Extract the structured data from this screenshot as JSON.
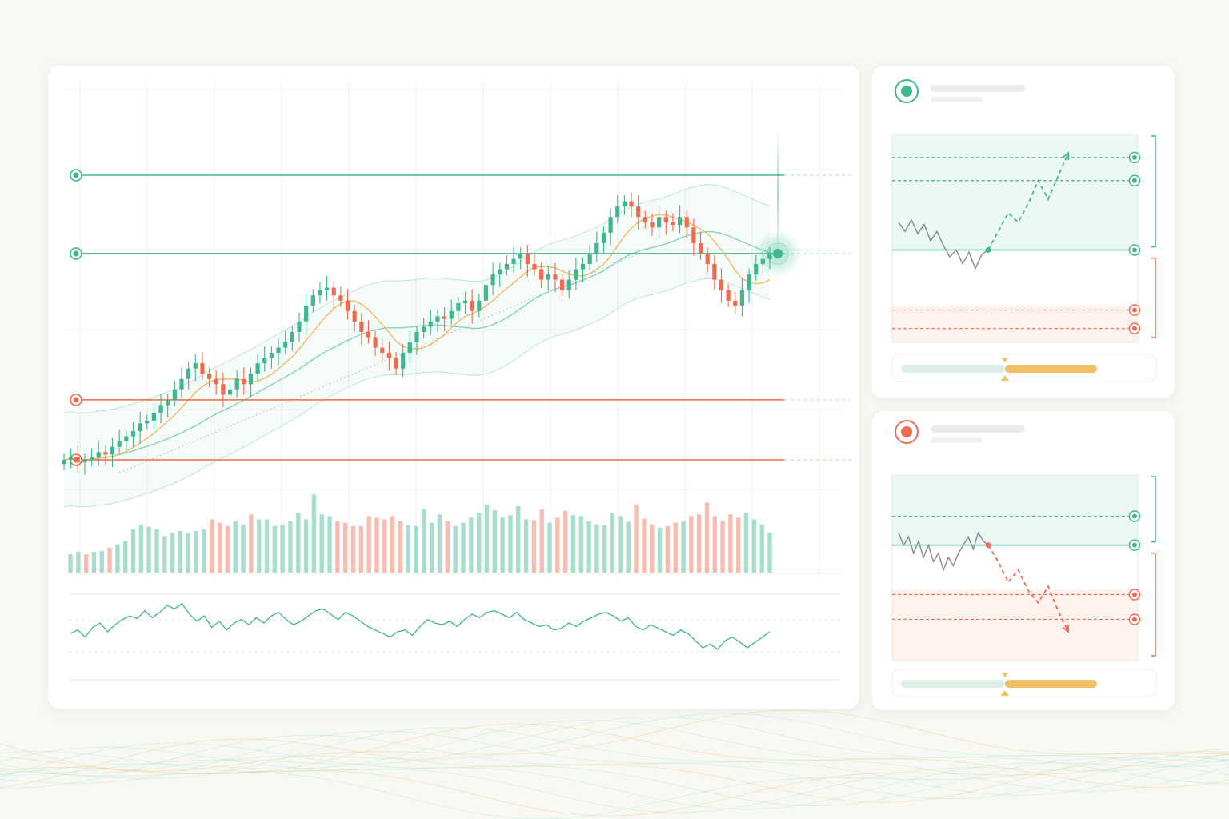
{
  "colors": {
    "up": "#3fb68b",
    "down": "#f06a4f",
    "ma_fast": "#f0b65a",
    "ma_slow": "#7fd1b0",
    "band": "#9edcc3",
    "trend": "#b8c0bc",
    "neutral_path": "#8a8f8c",
    "gauge_low": "#dcefe4",
    "gauge_high": "#f2c064",
    "background": "#f7f8f3"
  },
  "chart_data": [
    {
      "type": "candlestick",
      "title": "",
      "xlabel": "",
      "ylabel": "",
      "grid": true,
      "ylim": [
        0,
        100
      ],
      "levels": [
        {
          "kind": "resistance",
          "value": 85
        },
        {
          "kind": "resistance",
          "value": 70
        },
        {
          "kind": "support",
          "value": 42
        },
        {
          "kind": "support",
          "value": 30.5
        }
      ],
      "highlight": {
        "index": 87,
        "value": 70
      },
      "close": [
        30.5,
        31,
        30,
        30.5,
        31,
        32,
        31.5,
        33,
        34,
        35,
        36,
        37.5,
        38,
        39.5,
        41,
        42,
        44,
        46,
        48,
        49,
        47,
        46,
        45,
        43,
        44,
        46,
        45,
        47,
        49,
        50,
        51,
        52,
        53,
        55,
        57,
        60,
        62,
        63,
        63.5,
        62,
        61,
        59,
        57,
        55,
        54,
        52,
        51,
        50,
        48,
        51,
        53,
        55,
        56,
        57,
        58,
        57.5,
        59,
        60.5,
        61,
        59,
        61,
        64,
        66,
        67,
        68,
        69,
        70,
        68,
        67,
        65,
        66,
        65,
        63,
        65,
        67,
        68,
        70,
        72,
        74,
        77,
        79,
        80,
        79,
        77,
        76,
        75,
        77,
        76,
        75.5,
        77,
        75,
        72,
        70,
        68,
        65,
        63,
        61,
        60,
        63,
        66,
        68,
        69,
        70
      ]
    },
    {
      "type": "bar",
      "title": "",
      "values": [
        22,
        25,
        22,
        25,
        26,
        30,
        34,
        38,
        52,
        58,
        55,
        52,
        44,
        48,
        50,
        47,
        50,
        52,
        64,
        60,
        56,
        62,
        58,
        70,
        64,
        64,
        56,
        58,
        62,
        72,
        64,
        94,
        70,
        68,
        62,
        60,
        56,
        56,
        68,
        66,
        64,
        68,
        62,
        57,
        56,
        76,
        60,
        70,
        62,
        56,
        60,
        66,
        72,
        82,
        75,
        66,
        69,
        80,
        64,
        63,
        76,
        60,
        66,
        74,
        69,
        68,
        62,
        58,
        57,
        72,
        68,
        61,
        82,
        65,
        58,
        54,
        56,
        60,
        62,
        68,
        70,
        84,
        68,
        62,
        70,
        66,
        72,
        64,
        58,
        48
      ]
    },
    {
      "type": "line",
      "title": "",
      "values": [
        48,
        52,
        44,
        55,
        60,
        50,
        58,
        64,
        68,
        65,
        74,
        66,
        72,
        80,
        76,
        82,
        70,
        62,
        68,
        55,
        62,
        52,
        60,
        64,
        58,
        66,
        60,
        68,
        72,
        64,
        58,
        62,
        68,
        74,
        76,
        70,
        64,
        72,
        68,
        62,
        56,
        52,
        48,
        44,
        50,
        52,
        46,
        56,
        64,
        60,
        58,
        62,
        56,
        64,
        70,
        66,
        72,
        74,
        70,
        66,
        72,
        64,
        60,
        56,
        58,
        52,
        54,
        60,
        56,
        62,
        66,
        70,
        72,
        68,
        62,
        66,
        56,
        52,
        58,
        54,
        50,
        46,
        52,
        48,
        40,
        32,
        36,
        30,
        40,
        44,
        38,
        32,
        38,
        44,
        50
      ]
    },
    {
      "type": "line",
      "title": "",
      "scenario": "bullish",
      "history": [
        62,
        58,
        63,
        57,
        61,
        54,
        58,
        52,
        47,
        50,
        44,
        49,
        42,
        48,
        50
      ],
      "projection": [
        50,
        58,
        66,
        62,
        70,
        80,
        72,
        82,
        92
      ],
      "levels": [
        {
          "kind": "target",
          "value": 90
        },
        {
          "kind": "target",
          "value": 80
        },
        {
          "kind": "entry",
          "value": 50
        },
        {
          "kind": "stop",
          "value": 24
        },
        {
          "kind": "stop",
          "value": 16
        }
      ],
      "gauge": {
        "value": 0.53
      }
    },
    {
      "type": "line",
      "title": "",
      "scenario": "bearish",
      "history": [
        72,
        66,
        70,
        62,
        68,
        60,
        66,
        58,
        62,
        54,
        60,
        56,
        62,
        66,
        70,
        64,
        72,
        68,
        66
      ],
      "projection": [
        66,
        58,
        48,
        54,
        44,
        38,
        46,
        34,
        24
      ],
      "levels": [
        {
          "kind": "target",
          "value": 80
        },
        {
          "kind": "entry",
          "value": 66
        },
        {
          "kind": "stop",
          "value": 42
        },
        {
          "kind": "stop",
          "value": 30
        }
      ],
      "gauge": {
        "value": 0.53
      }
    }
  ]
}
